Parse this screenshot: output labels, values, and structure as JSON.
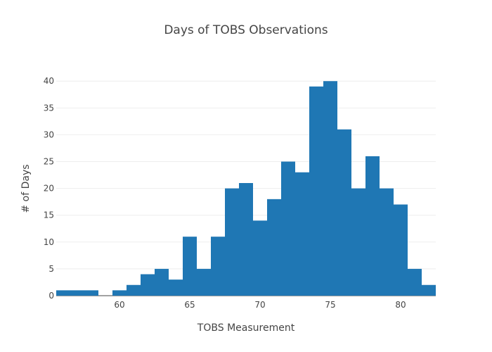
{
  "chart_data": {
    "type": "bar",
    "title": "Days of TOBS Observations",
    "xlabel": "TOBS Measurement",
    "ylabel": "# of Days",
    "x": [
      56,
      57,
      58,
      59,
      60,
      61,
      62,
      63,
      64,
      65,
      66,
      67,
      68,
      69,
      70,
      71,
      72,
      73,
      74,
      75,
      76,
      77,
      78,
      79,
      80,
      81,
      82
    ],
    "values": [
      1,
      1,
      1,
      0,
      1,
      2,
      4,
      5,
      3,
      11,
      5,
      11,
      20,
      21,
      14,
      18,
      25,
      23,
      39,
      40,
      31,
      20,
      26,
      20,
      17,
      5,
      2
    ],
    "bin_width": 1,
    "xlim": [
      55.5,
      82.5
    ],
    "ylim": [
      0,
      42
    ],
    "xticks": [
      60,
      65,
      70,
      75,
      80
    ],
    "yticks": [
      0,
      5,
      10,
      15,
      20,
      25,
      30,
      35,
      40
    ],
    "grid": true,
    "bar_color": "#1f77b4",
    "grid_color": "#eeeeee"
  }
}
